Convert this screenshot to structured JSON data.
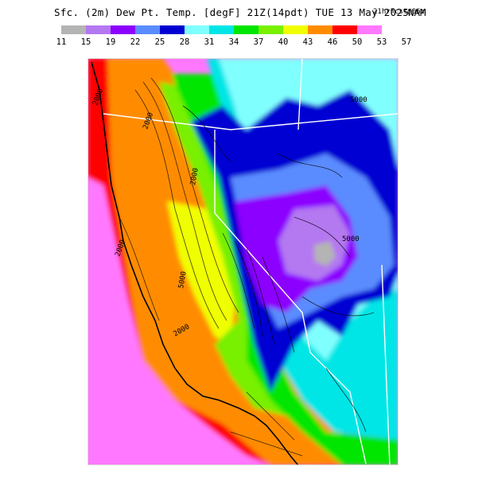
{
  "title": {
    "main": "Sfc. (2m) Dew Pt. Temp. [degF] 21Z(14pdt) TUE 13 May 2025",
    "run": "21hrFcst@06z",
    "model": "NAM"
  },
  "legend": {
    "ticks": [
      "11",
      "15",
      "19",
      "22",
      "25",
      "28",
      "31",
      "34",
      "37",
      "40",
      "43",
      "46",
      "50",
      "53",
      "57"
    ],
    "colors": [
      "#b4b4b4",
      "#b478f0",
      "#8c00ff",
      "#5a8cff",
      "#0000d2",
      "#80ffff",
      "#00e6e6",
      "#00e600",
      "#78f000",
      "#f0ff00",
      "#ff8c00",
      "#ff0000",
      "#ff78ff"
    ]
  },
  "map": {
    "contour_labels": [
      "2000",
      "2000",
      "2000",
      "2000",
      "2000",
      "5000",
      "5000",
      "5000"
    ]
  }
}
